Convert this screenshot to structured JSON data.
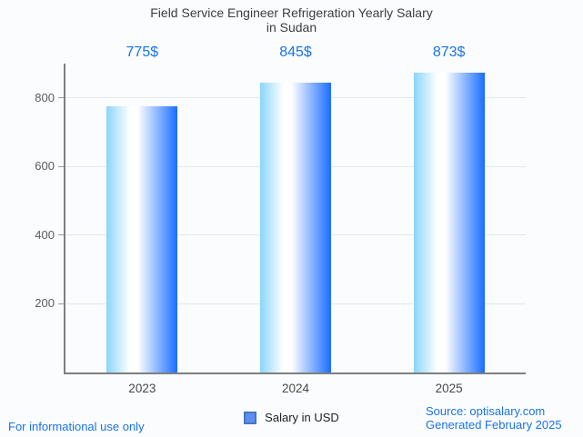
{
  "title": {
    "line1": "Field Service Engineer Refrigeration Yearly Salary",
    "line2": "in Sudan"
  },
  "chart_data": {
    "type": "bar",
    "title": "Field Service Engineer Refrigeration Yearly Salary in Sudan",
    "categories": [
      "2023",
      "2024",
      "2025"
    ],
    "values": [
      775,
      845,
      873
    ],
    "value_labels": [
      "775$",
      "845$",
      "873$"
    ],
    "xlabel": "",
    "ylabel": "",
    "ylim": [
      0,
      900
    ],
    "yticks": [
      200,
      400,
      600,
      800
    ],
    "grid": true,
    "legend_position": "bottom",
    "series_name": "Salary in USD",
    "bar_gradient": [
      "#8bd5fb",
      "#ffffff",
      "#1a6dff"
    ],
    "value_label_color": "#1a73e8"
  },
  "legend": {
    "label": "Salary in USD",
    "marker_color": "#5d8ef0"
  },
  "footer": {
    "disclaimer": "For informational use only",
    "source": "Source: optisalary.com",
    "generated": "Generated February 2025",
    "link_color": "#1a73e8"
  }
}
